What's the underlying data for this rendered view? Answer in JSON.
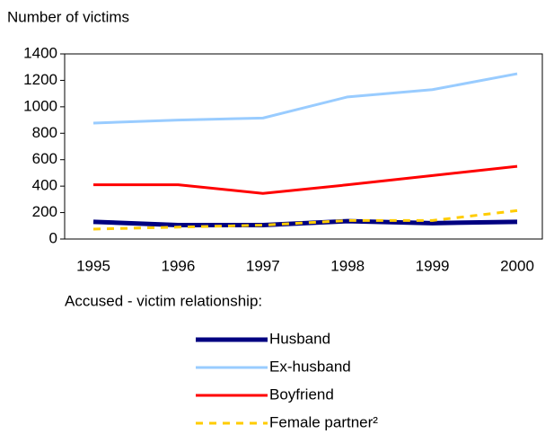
{
  "chart_data": {
    "type": "line",
    "y_label": "Number of victims",
    "legend_title": "Accused - victim relationship:",
    "categories": [
      "1995",
      "1996",
      "1997",
      "1998",
      "1999",
      "2000"
    ],
    "series": [
      {
        "name": "Husband",
        "color": "#000080",
        "values": [
          130,
          105,
          105,
          135,
          120,
          130
        ]
      },
      {
        "name": "Ex-husband",
        "color": "#99ccff",
        "values": [
          877,
          900,
          915,
          1075,
          1130,
          1250
        ]
      },
      {
        "name": "Boyfriend",
        "color": "#ff0000",
        "values": [
          410,
          410,
          345,
          410,
          480,
          550
        ]
      },
      {
        "name": "Female partner²",
        "color": "#ffcc00",
        "values": [
          75,
          90,
          105,
          140,
          140,
          215
        ]
      }
    ],
    "ylim": [
      0,
      1400
    ],
    "yticks": [
      0,
      200,
      400,
      600,
      800,
      1000,
      1200,
      1400
    ],
    "grid": false
  }
}
